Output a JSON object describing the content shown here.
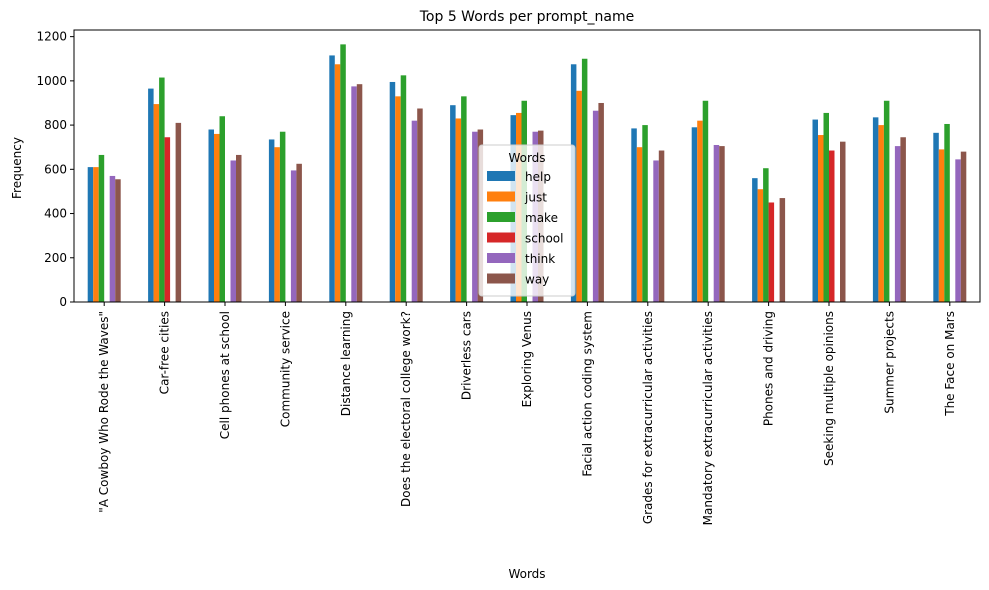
{
  "chart_data": {
    "type": "bar",
    "title": "Top 5 Words per prompt_name",
    "xlabel": "Words",
    "ylabel": "Frequency",
    "ylim": [
      0,
      1230
    ],
    "yticks": [
      0,
      200,
      400,
      600,
      800,
      1000,
      1200
    ],
    "grid": false,
    "legend_title": "Words",
    "legend_position": "center",
    "categories": [
      "\"A Cowboy Who Rode the Waves\"",
      "Car-free cities",
      "Cell phones at school",
      "Community service",
      "Distance learning",
      "Does the electoral college work?",
      "Driverless cars",
      "Exploring Venus",
      "Facial action coding system",
      "Grades for extracurricular activities",
      "Mandatory extracurricular activities",
      "Phones and driving",
      "Seeking multiple opinions",
      "Summer projects",
      "The Face on Mars"
    ],
    "series": [
      {
        "name": "help",
        "color": "#1f77b4",
        "values": [
          610,
          965,
          780,
          735,
          1115,
          995,
          890,
          845,
          1075,
          785,
          790,
          560,
          825,
          835,
          765
        ]
      },
      {
        "name": "just",
        "color": "#ff7f0e",
        "values": [
          610,
          895,
          760,
          700,
          1075,
          930,
          830,
          855,
          955,
          700,
          820,
          510,
          755,
          800,
          690
        ]
      },
      {
        "name": "make",
        "color": "#2ca02c",
        "values": [
          665,
          1015,
          840,
          770,
          1165,
          1025,
          930,
          910,
          1100,
          800,
          910,
          605,
          855,
          910,
          805
        ]
      },
      {
        "name": "school",
        "color": "#d62728",
        "values": [
          0,
          745,
          0,
          0,
          0,
          0,
          0,
          0,
          0,
          0,
          0,
          450,
          685,
          0,
          0
        ]
      },
      {
        "name": "think",
        "color": "#9467bd",
        "values": [
          570,
          0,
          640,
          595,
          975,
          820,
          770,
          770,
          865,
          640,
          710,
          0,
          0,
          705,
          645
        ]
      },
      {
        "name": "way",
        "color": "#8c564b",
        "values": [
          555,
          810,
          665,
          625,
          985,
          875,
          780,
          775,
          900,
          685,
          705,
          470,
          725,
          745,
          680
        ]
      }
    ]
  }
}
